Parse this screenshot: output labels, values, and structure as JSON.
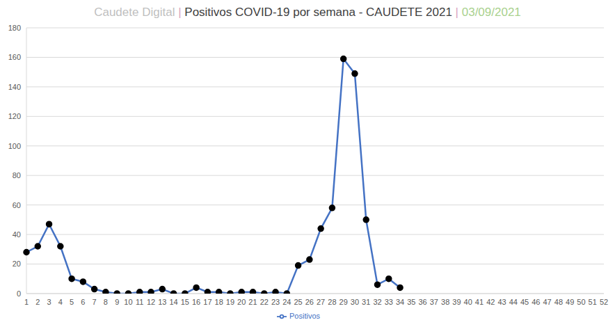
{
  "chart_data": {
    "type": "line",
    "title": "Caudete Digital | Positivos COVID-19 por semana - CAUDETE 2021 | 03/09/2021",
    "categories": [
      "1",
      "2",
      "3",
      "4",
      "5",
      "6",
      "7",
      "8",
      "9",
      "10",
      "11",
      "12",
      "13",
      "14",
      "15",
      "16",
      "17",
      "18",
      "19",
      "20",
      "21",
      "22",
      "23",
      "24",
      "25",
      "26",
      "27",
      "28",
      "29",
      "30",
      "31",
      "32",
      "33",
      "34",
      "35",
      "36",
      "37",
      "38",
      "39",
      "40",
      "41",
      "42",
      "43",
      "44",
      "45",
      "46",
      "47",
      "48",
      "49",
      "50",
      "51",
      "52"
    ],
    "series": [
      {
        "name": "Positivos",
        "color": "#4472c4",
        "marker": "circle",
        "values": [
          28,
          32,
          47,
          32,
          10,
          8,
          3,
          1,
          0,
          0,
          1,
          1,
          3,
          0,
          0,
          4,
          1,
          1,
          0,
          1,
          1,
          0,
          1,
          0,
          19,
          23,
          44,
          58,
          159,
          149,
          50,
          6,
          10,
          4,
          null,
          null,
          null,
          null,
          null,
          null,
          null,
          null,
          null,
          null,
          null,
          null,
          null,
          null,
          null,
          null,
          null,
          null
        ]
      }
    ],
    "ylim": [
      0,
      180
    ],
    "yticks": [
      0,
      20,
      40,
      60,
      80,
      100,
      120,
      140,
      160,
      180
    ],
    "grid": true,
    "legend": "bottom"
  }
}
